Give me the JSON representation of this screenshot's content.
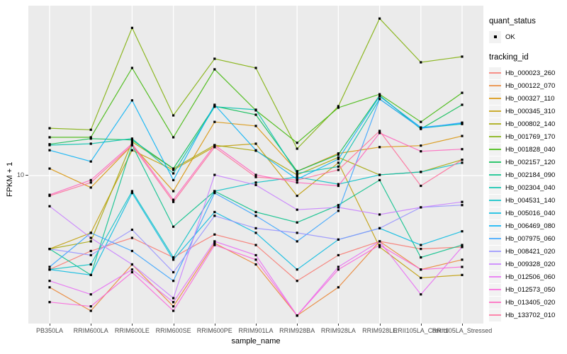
{
  "chart_data": {
    "type": "line",
    "title": "",
    "xlabel": "sample_name",
    "ylabel": "FPKM + 1",
    "y_scale": "log10",
    "y_tick_label": "10",
    "y_tick_value": 10,
    "ylim": [
      1.35,
      100
    ],
    "grid": "major-only",
    "point_shape": "filled-square",
    "point_color": "#000000",
    "panel_background": "#EBEBEB",
    "x_categories": [
      "PB350LA",
      "RRIM600LA",
      "RRIM600LE",
      "RRIM600SE",
      "RRIM600PE",
      "RRIM901LA",
      "RRIM928BA",
      "RRIM928LA",
      "RRIM928LE",
      "RRII105LA_Control",
      "RRII105LA_Stressed"
    ],
    "series": [
      {
        "name": "Hb_000023_260",
        "color": "#F8766D",
        "values": [
          2.8,
          3.6,
          4.3,
          3.3,
          4.5,
          3.9,
          2.4,
          3.4,
          4.1,
          3.7,
          3.8
        ]
      },
      {
        "name": "Hb_000122_070",
        "color": "#EA8331",
        "values": [
          2.2,
          1.6,
          3.0,
          1.7,
          4.0,
          3.0,
          1.5,
          2.2,
          4.1,
          2.8,
          3.2
        ]
      },
      {
        "name": "Hb_000327_110",
        "color": "#D89000",
        "values": [
          11.0,
          8.5,
          15.1,
          8.1,
          20.7,
          19.6,
          10.6,
          13.5,
          14.7,
          15.0,
          17.1
        ]
      },
      {
        "name": "Hb_000345_310",
        "color": "#C09B00",
        "values": [
          3.7,
          4.6,
          14.1,
          10.8,
          14.8,
          15.4,
          7.6,
          11.9,
          3.8,
          2.5,
          2.6
        ]
      },
      {
        "name": "Hb_000802_140",
        "color": "#A3A500",
        "values": [
          3.7,
          4.1,
          15.8,
          11.0,
          15.1,
          14.0,
          10.1,
          12.8,
          10.1,
          10.5,
          12.4
        ]
      },
      {
        "name": "Hb_001769_170",
        "color": "#7CAE00",
        "values": [
          19.0,
          18.6,
          74.0,
          22.6,
          48.7,
          43.0,
          14.4,
          25.6,
          84.0,
          46.4,
          50.1
        ]
      },
      {
        "name": "Hb_001828_040",
        "color": "#39B600",
        "values": [
          16.8,
          16.8,
          43.0,
          16.8,
          42.2,
          24.2,
          15.6,
          25.1,
          30.1,
          20.7,
          30.7
        ]
      },
      {
        "name": "Hb_002157_120",
        "color": "#00BB4E",
        "values": [
          15.3,
          16.5,
          16.2,
          11.0,
          25.6,
          22.8,
          10.6,
          13.3,
          29.6,
          18.8,
          26.1
        ]
      },
      {
        "name": "Hb_002184_090",
        "color": "#00C087",
        "values": [
          3.7,
          2.6,
          15.1,
          5.0,
          8.1,
          6.1,
          5.3,
          6.7,
          9.4,
          3.3,
          3.9
        ]
      },
      {
        "name": "Hb_002304_040",
        "color": "#00C1AB",
        "values": [
          15.1,
          15.4,
          16.5,
          10.3,
          25.4,
          24.4,
          10.3,
          11.3,
          28.2,
          19.0,
          20.1
        ]
      },
      {
        "name": "Hb_004531_140",
        "color": "#00BFC4",
        "values": [
          2.8,
          3.0,
          8.1,
          3.3,
          8.1,
          9.1,
          9.8,
          8.9,
          10.1,
          10.5,
          11.9
        ]
      },
      {
        "name": "Hb_005016_040",
        "color": "#00BAE0",
        "values": [
          2.8,
          2.6,
          7.9,
          3.2,
          6.1,
          4.6,
          2.8,
          4.2,
          4.9,
          3.9,
          4.7
        ]
      },
      {
        "name": "Hb_006469_080",
        "color": "#00B0F6",
        "values": [
          14.1,
          12.1,
          27.7,
          9.4,
          26.1,
          14.1,
          9.5,
          12.5,
          29.3,
          19.2,
          20.3
        ]
      },
      {
        "name": "Hb_007975_060",
        "color": "#35A2FF",
        "values": [
          2.9,
          4.6,
          3.6,
          2.4,
          7.9,
          5.8,
          4.1,
          6.2,
          28.2,
          19.0,
          20.5
        ]
      },
      {
        "name": "Hb_008421_020",
        "color": "#9590FF",
        "values": [
          3.7,
          3.4,
          4.8,
          2.7,
          5.8,
          4.9,
          4.6,
          4.2,
          4.9,
          6.5,
          6.7
        ]
      },
      {
        "name": "Hb_009328_020",
        "color": "#C77CFF",
        "values": [
          6.6,
          4.3,
          3.0,
          1.9,
          10.1,
          8.8,
          6.3,
          6.5,
          5.9,
          6.5,
          7.0
        ]
      },
      {
        "name": "Hb_012506_060",
        "color": "#E76BF3",
        "values": [
          2.4,
          2.0,
          2.8,
          1.8,
          4.1,
          3.4,
          1.5,
          2.9,
          4.1,
          2.0,
          3.8
        ]
      },
      {
        "name": "Hb_012573_050",
        "color": "#FA62DB",
        "values": [
          1.8,
          1.7,
          2.7,
          1.6,
          3.9,
          3.2,
          1.5,
          2.8,
          3.9,
          2.8,
          2.9
        ]
      },
      {
        "name": "Hb_013405_020",
        "color": "#FF62BC",
        "values": [
          7.7,
          9.4,
          15.4,
          7.2,
          15.1,
          10.1,
          9.1,
          8.7,
          17.8,
          13.9,
          14.3
        ]
      },
      {
        "name": "Hb_133702_010",
        "color": "#FF6A98",
        "values": [
          7.6,
          9.1,
          15.1,
          7.0,
          14.7,
          9.8,
          9.4,
          10.8,
          18.3,
          8.7,
          12.4
        ]
      }
    ]
  },
  "legend": {
    "quant_status_title": "quant_status",
    "quant_status_item": "OK",
    "tracking_id_title": "tracking_id"
  }
}
